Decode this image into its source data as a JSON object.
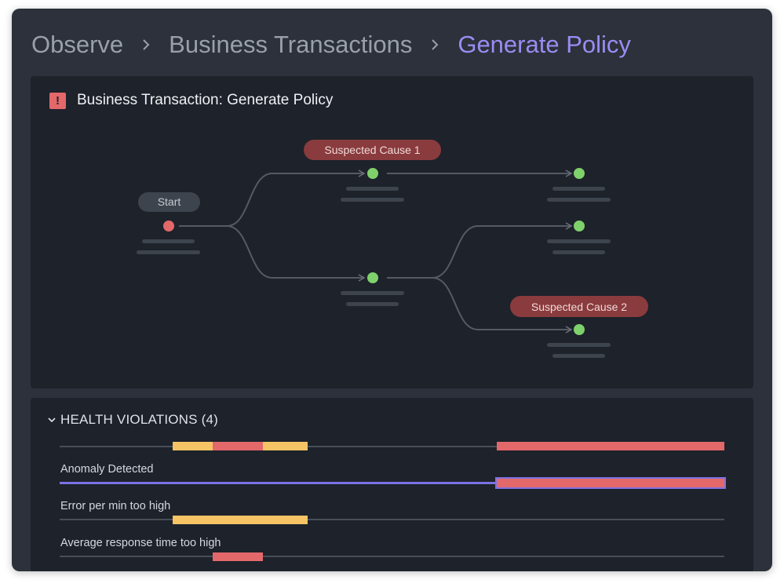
{
  "breadcrumb": {
    "items": [
      "Observe",
      "Business Transactions",
      "Generate Policy"
    ]
  },
  "transaction": {
    "title": "Business Transaction: Generate Policy",
    "status_icon": "alert-icon",
    "nodes": {
      "start_label": "Start",
      "cause1_label": "Suspected Cause 1",
      "cause2_label": "Suspected Cause 2"
    }
  },
  "violations": {
    "header": "HEALTH VIOLATIONS (4)",
    "rows": [
      {
        "label": ""
      },
      {
        "label": "Anomaly Detected"
      },
      {
        "label": "Error per min too high"
      },
      {
        "label": "Average response time too high"
      }
    ]
  },
  "colors": {
    "accent": "#9a8cf2",
    "error": "#e3686a",
    "warning": "#f6c465",
    "success": "#7fd16b",
    "cause_pill": "#8a3b3d"
  }
}
